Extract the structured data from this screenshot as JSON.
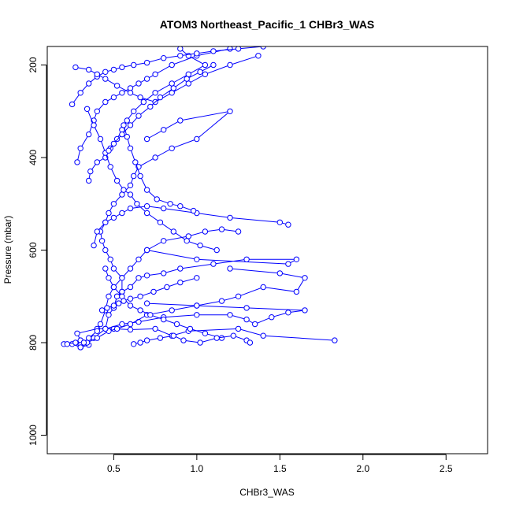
{
  "chart_data": {
    "type": "line",
    "title": "ATOM3 Northeast_Pacific_1 CHBr3_WAS",
    "xlabel": "CHBr3_WAS",
    "ylabel": "Pressure (mbar)",
    "xlim": [
      0.1,
      2.75
    ],
    "ylim": [
      1040,
      160
    ],
    "y_reversed": true,
    "xticks": [
      0.5,
      1.0,
      1.5,
      2.0,
      2.5
    ],
    "xtick_labels": [
      "0.5",
      "1.0",
      "1.5",
      "2.0",
      "2.5"
    ],
    "yticks": [
      200,
      400,
      600,
      800,
      1000
    ],
    "ytick_labels": [
      "200",
      "400",
      "600",
      "800",
      "1000"
    ],
    "grid": false,
    "marker": "open-circle",
    "series": [
      {
        "x": [
          0.2,
          0.25,
          0.3,
          0.35,
          0.3,
          0.28,
          0.4,
          0.5,
          0.6,
          0.75,
          0.85,
          0.95,
          1.25,
          1.4,
          1.83
        ],
        "y": [
          803,
          803,
          810,
          805,
          795,
          780,
          770,
          770,
          772,
          770,
          785,
          775,
          770,
          785,
          795
        ]
      },
      {
        "x": [
          0.22,
          0.27,
          0.32,
          0.38,
          0.45,
          0.55,
          0.65,
          0.8,
          1.0,
          1.2,
          1.3,
          1.35,
          1.45,
          1.55,
          1.65,
          1.3,
          1.0,
          0.7
        ],
        "y": [
          803,
          800,
          800,
          790,
          770,
          760,
          755,
          745,
          740,
          740,
          750,
          760,
          745,
          735,
          730,
          725,
          720,
          715
        ]
      },
      {
        "x": [
          0.3,
          0.34,
          0.4,
          0.47,
          0.52,
          0.6,
          0.7,
          0.85,
          1.0,
          1.15,
          1.25,
          1.4,
          1.6,
          1.65,
          1.5,
          1.2
        ],
        "y": [
          805,
          800,
          790,
          775,
          770,
          760,
          740,
          730,
          720,
          710,
          700,
          680,
          690,
          660,
          650,
          640
        ]
      },
      {
        "x": [
          0.45,
          0.47,
          0.5,
          0.52,
          0.55,
          0.6,
          0.65,
          0.7,
          0.8,
          0.9,
          1.1,
          1.3,
          1.6,
          1.55,
          1.0,
          0.7
        ],
        "y": [
          770,
          740,
          725,
          700,
          690,
          680,
          660,
          655,
          650,
          640,
          630,
          620,
          620,
          630,
          620,
          600
        ]
      },
      {
        "x": [
          0.5,
          0.52,
          0.55,
          0.55,
          0.5,
          0.48,
          0.45,
          0.43,
          0.42,
          0.45,
          0.5,
          0.55,
          0.6,
          0.7,
          0.8,
          1.0,
          1.2,
          1.5,
          1.55
        ],
        "y": [
          725,
          700,
          690,
          660,
          640,
          620,
          600,
          580,
          560,
          540,
          530,
          520,
          510,
          505,
          510,
          520,
          530,
          540,
          545
        ]
      },
      {
        "x": [
          0.3,
          0.32,
          0.35,
          0.4,
          0.42,
          0.45,
          0.47,
          0.5,
          0.55,
          0.6,
          0.65,
          0.7,
          0.8,
          0.95,
          1.05,
          1.15,
          1.25
        ],
        "y": [
          810,
          800,
          790,
          775,
          760,
          730,
          700,
          680,
          660,
          640,
          620,
          600,
          580,
          570,
          560,
          555,
          560
        ]
      },
      {
        "x": [
          0.38,
          0.4,
          0.45,
          0.47,
          0.5,
          0.55,
          0.6,
          0.62,
          0.65,
          0.75,
          0.85,
          1.0,
          1.2,
          0.9,
          0.8,
          0.7
        ],
        "y": [
          590,
          560,
          540,
          520,
          500,
          480,
          460,
          440,
          420,
          400,
          380,
          360,
          300,
          320,
          340,
          360
        ]
      },
      {
        "x": [
          0.35,
          0.36,
          0.4,
          0.45,
          0.48,
          0.52,
          0.55,
          0.58,
          0.62,
          0.68,
          0.75,
          0.85,
          0.95,
          1.05,
          0.95,
          0.9
        ],
        "y": [
          450,
          430,
          410,
          400,
          380,
          360,
          340,
          320,
          300,
          280,
          260,
          240,
          220,
          200,
          180,
          165
        ]
      },
      {
        "x": [
          0.28,
          0.3,
          0.35,
          0.38,
          0.4,
          0.45,
          0.5,
          0.55,
          0.6,
          0.65,
          0.7,
          0.75,
          0.85,
          1.0,
          1.2
        ],
        "y": [
          410,
          380,
          350,
          320,
          300,
          280,
          270,
          260,
          250,
          240,
          230,
          220,
          200,
          180,
          165
        ]
      },
      {
        "x": [
          0.25,
          0.3,
          0.35,
          0.4,
          0.45,
          0.5,
          0.55,
          0.62,
          0.7,
          0.8,
          0.9,
          1.0,
          1.1,
          1.25,
          1.4
        ],
        "y": [
          285,
          260,
          240,
          225,
          215,
          210,
          205,
          200,
          195,
          185,
          180,
          175,
          170,
          165,
          160
        ]
      },
      {
        "x": [
          0.27,
          0.35,
          0.4,
          0.45,
          0.52,
          0.6,
          0.66,
          0.75,
          0.85,
          0.95,
          1.05,
          1.2,
          1.37
        ],
        "y": [
          205,
          210,
          220,
          230,
          245,
          260,
          270,
          280,
          260,
          240,
          220,
          200,
          180
        ]
      },
      {
        "x": [
          0.34,
          0.38,
          0.42,
          0.45,
          0.48,
          0.52,
          0.56,
          0.6,
          0.64,
          0.7,
          0.78,
          0.86,
          0.94,
          1.02,
          1.12
        ],
        "y": [
          295,
          330,
          360,
          390,
          420,
          450,
          470,
          480,
          500,
          520,
          540,
          560,
          580,
          590,
          600
        ]
      },
      {
        "x": [
          0.45,
          0.47,
          0.5,
          0.55,
          0.6,
          0.66,
          0.72,
          0.8,
          0.88,
          0.96,
          1.05,
          1.15
        ],
        "y": [
          640,
          660,
          680,
          700,
          720,
          730,
          740,
          750,
          760,
          770,
          780,
          790
        ]
      },
      {
        "x": [
          0.62,
          0.66,
          0.7,
          0.78,
          0.86,
          0.92,
          1.02,
          1.12,
          1.22,
          1.3,
          1.32
        ],
        "y": [
          803,
          800,
          795,
          790,
          785,
          795,
          800,
          790,
          785,
          795,
          800
        ]
      },
      {
        "x": [
          0.43,
          0.46,
          0.5,
          0.53,
          0.56,
          0.6,
          0.66,
          0.74,
          0.82,
          0.9,
          1.0
        ],
        "y": [
          730,
          725,
          720,
          715,
          710,
          705,
          700,
          690,
          680,
          670,
          660
        ]
      },
      {
        "x": [
          0.56,
          0.58,
          0.6,
          0.63,
          0.66,
          0.7,
          0.76,
          0.84,
          0.9,
          0.98
        ],
        "y": [
          330,
          355,
          380,
          410,
          440,
          470,
          490,
          500,
          505,
          515
        ]
      },
      {
        "x": [
          0.47,
          0.5,
          0.55,
          0.6,
          0.65,
          0.72,
          0.78,
          0.86,
          0.94,
          1.02,
          1.1
        ],
        "y": [
          385,
          370,
          350,
          330,
          310,
          290,
          270,
          250,
          230,
          215,
          200
        ]
      }
    ]
  }
}
